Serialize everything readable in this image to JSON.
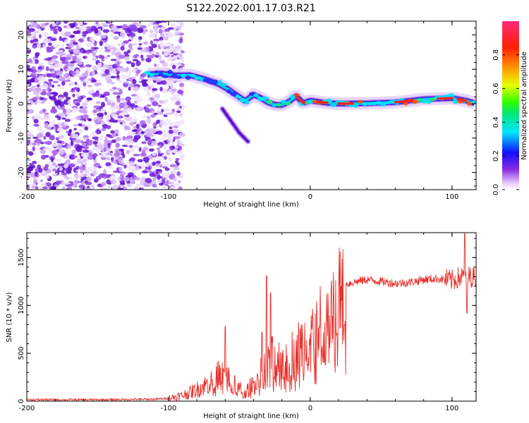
{
  "title": "S122.2022.001.17.03.R21",
  "colors": {
    "snr_line": "#e8302a",
    "axis": "#000000",
    "noise_dark": "#7a1fe0",
    "noise_light": "#d9b8f6"
  },
  "chart_data": [
    {
      "type": "heatmap",
      "name": "spectrogram",
      "xlabel": "Height of straight line (km)",
      "ylabel": "Frequency (Hz)",
      "xlim": [
        -200,
        117
      ],
      "ylim": [
        -25,
        24
      ],
      "xticks": [
        -200,
        -100,
        0,
        100
      ],
      "xtick_labels": [
        "-200",
        "-100",
        "0",
        "100"
      ],
      "yticks": [
        -20,
        -10,
        0,
        10,
        20
      ],
      "ytick_labels": [
        "-20",
        "-10",
        "0",
        "10",
        "20"
      ],
      "ridge_x": [
        -115,
        -105,
        -95,
        -85,
        -75,
        -65,
        -58,
        -52,
        -46,
        -40,
        -35,
        -30,
        -25,
        -20,
        -15,
        -10,
        -5,
        0,
        10,
        20,
        40,
        60,
        80,
        100,
        110,
        117
      ],
      "ridge_y": [
        8.5,
        8.8,
        8.2,
        8.3,
        7.2,
        5.8,
        4.2,
        2.5,
        0.8,
        2.6,
        1.7,
        0.4,
        -0.3,
        -0.4,
        0.6,
        2.2,
        0.2,
        0.9,
        0.3,
        0.0,
        0.1,
        0.4,
        1.3,
        1.6,
        0.9,
        0.0
      ],
      "branch_x": [
        -62,
        -56,
        -50,
        -44
      ],
      "branch_y": [
        -1.5,
        -5.0,
        -8.5,
        -11.0
      ],
      "colorbar": {
        "label": "Normalized spectral amplitude",
        "ticks": [
          0.0,
          0.2,
          0.4,
          0.6,
          0.8
        ],
        "tick_labels": [
          "0.0",
          "0.2",
          "0.4",
          "0.6",
          "0.8"
        ],
        "range": [
          0,
          1
        ]
      }
    },
    {
      "type": "line",
      "name": "snr",
      "xlabel": "Height of straight line (km)",
      "ylabel": "SNR (10 * v/v)",
      "xlim": [
        -200,
        117
      ],
      "ylim": [
        0,
        1760
      ],
      "xticks": [
        -200,
        -100,
        0,
        100
      ],
      "xtick_labels": [
        "-200",
        "-100",
        "0",
        "100"
      ],
      "yticks": [
        0,
        500,
        1000,
        1500
      ],
      "ytick_labels": [
        "0",
        "500",
        "1000",
        "1500"
      ],
      "envelope_x": [
        -200,
        -150,
        -110,
        -100,
        -90,
        -80,
        -70,
        -62,
        -58,
        -52,
        -46,
        -40,
        -34,
        -28,
        -22,
        -16,
        -10,
        -4,
        2,
        8,
        14,
        20,
        25,
        30,
        40,
        50,
        60,
        70,
        80,
        90,
        100,
        105,
        108,
        110,
        112,
        117
      ],
      "envelope_y": [
        15,
        15,
        20,
        30,
        60,
        120,
        200,
        300,
        240,
        140,
        90,
        180,
        320,
        430,
        430,
        440,
        520,
        620,
        700,
        820,
        930,
        1100,
        1220,
        1240,
        1270,
        1250,
        1230,
        1240,
        1270,
        1280,
        1260,
        1290,
        1300,
        1240,
        1300,
        1300
      ],
      "spikes_x": [
        -60,
        -34,
        -31,
        -28,
        109,
        110.5
      ],
      "spikes_y": [
        780,
        720,
        1310,
        1130,
        1750,
        920
      ]
    }
  ]
}
